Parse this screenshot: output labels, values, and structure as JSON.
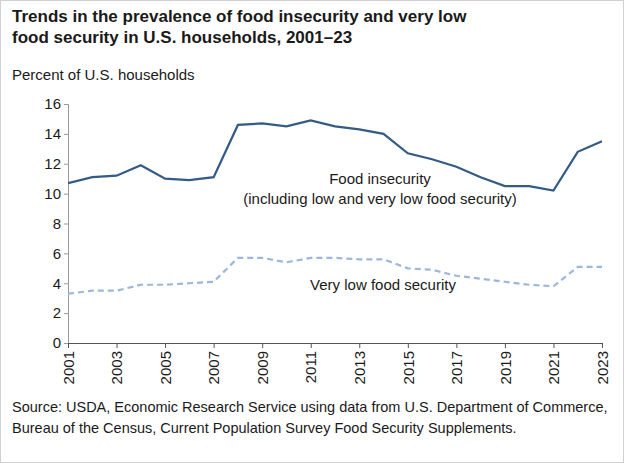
{
  "chart_data": {
    "type": "line",
    "title": "Trends in the prevalence of food insecurity and very low food security in U.S. households, 2001–23",
    "y_label": "Percent of U.S. households",
    "source": "Source: USDA, Economic Research Service using data from U.S. Department of Commerce, Bureau of the Census, Current Population Survey Food Security Supplements.",
    "x": [
      2001,
      2002,
      2003,
      2004,
      2005,
      2006,
      2007,
      2008,
      2009,
      2010,
      2011,
      2012,
      2013,
      2014,
      2015,
      2016,
      2017,
      2018,
      2019,
      2020,
      2021,
      2022,
      2023
    ],
    "series": [
      {
        "name": "Food insecurity (including low and very low food security)",
        "color": "#335b86",
        "line_style": "solid",
        "values": [
          10.7,
          11.1,
          11.2,
          11.9,
          11.0,
          10.9,
          11.1,
          14.6,
          14.7,
          14.5,
          14.9,
          14.5,
          14.3,
          14.0,
          12.7,
          12.3,
          11.8,
          11.1,
          10.5,
          10.5,
          10.2,
          12.8,
          13.5
        ]
      },
      {
        "name": "Very low food security",
        "color": "#9db7db",
        "line_style": "dashed",
        "values": [
          3.3,
          3.5,
          3.5,
          3.9,
          3.9,
          4.0,
          4.1,
          5.7,
          5.7,
          5.4,
          5.7,
          5.7,
          5.6,
          5.6,
          5.0,
          4.9,
          4.5,
          4.3,
          4.1,
          3.9,
          3.8,
          5.1,
          5.1
        ]
      }
    ],
    "xlim": [
      2001,
      2023
    ],
    "xticks": [
      2001,
      2003,
      2005,
      2007,
      2009,
      2011,
      2013,
      2015,
      2017,
      2019,
      2021,
      2023
    ],
    "ylim": [
      0,
      16
    ],
    "yticks": [
      0,
      2,
      4,
      6,
      8,
      10,
      12,
      14,
      16
    ],
    "grid": false
  }
}
